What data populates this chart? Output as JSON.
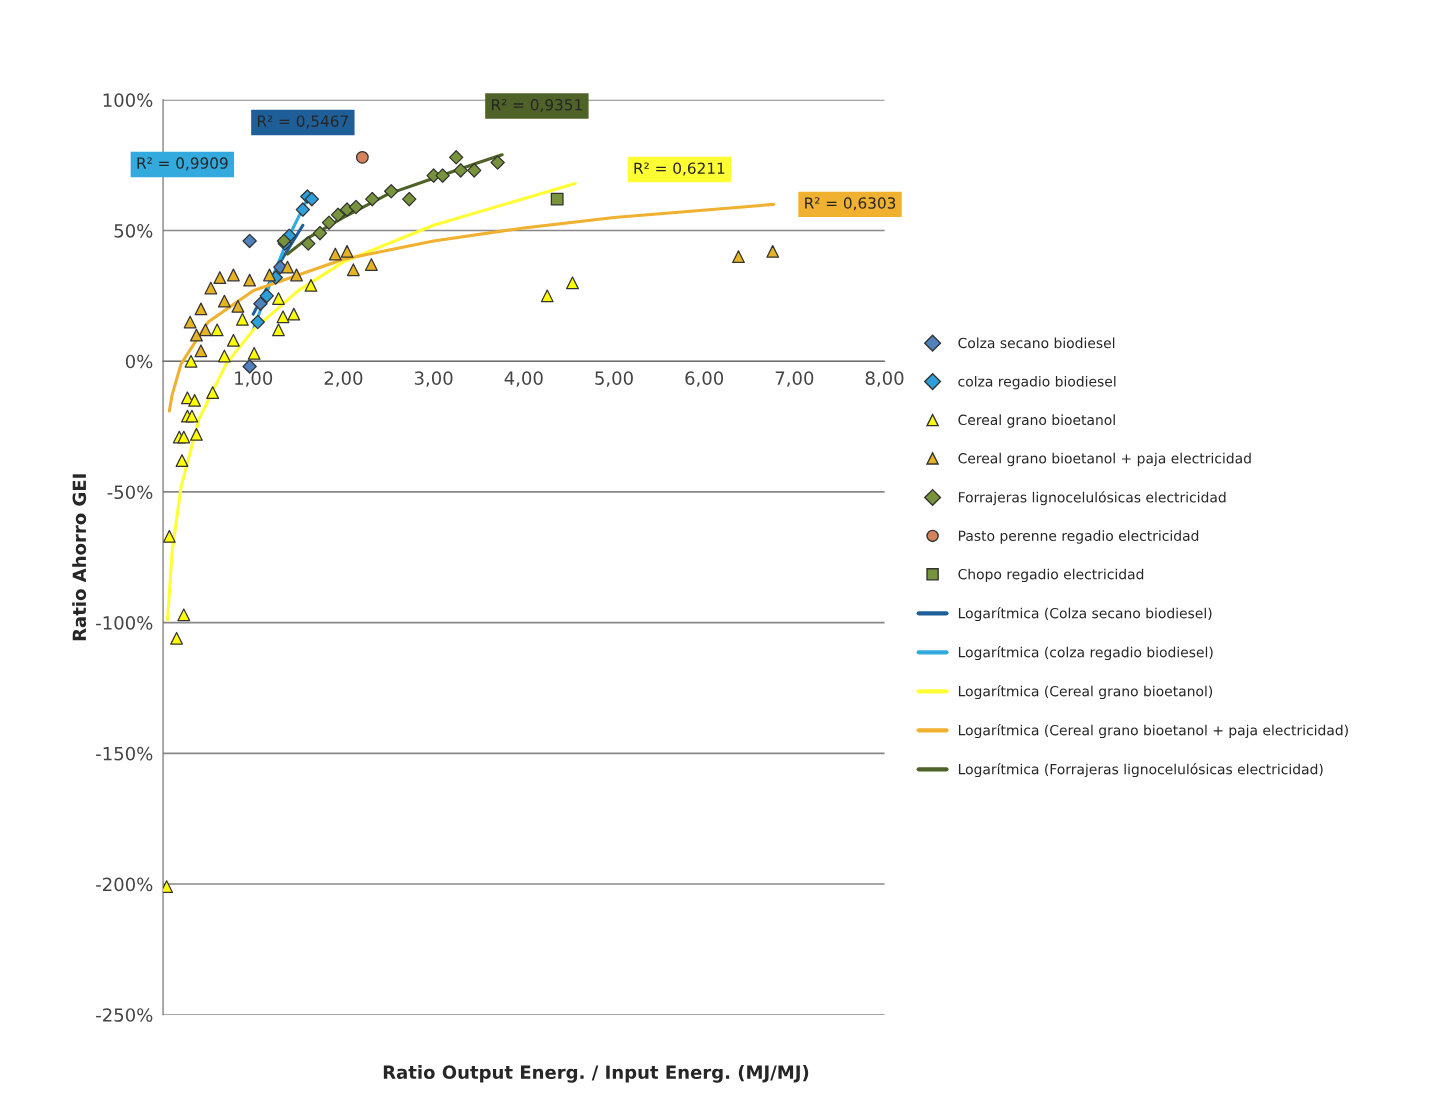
{
  "chart_data": {
    "type": "scatter",
    "xlabel": "Ratio Output Energ. / Input Energ. (MJ/MJ)",
    "ylabel": "Ratio Ahorro GEI",
    "xlim": [
      0,
      8
    ],
    "xticks": [
      {
        "value": 1,
        "label": "1,00"
      },
      {
        "value": 2,
        "label": "2,00"
      },
      {
        "value": 3,
        "label": "3,00"
      },
      {
        "value": 4,
        "label": "4,00"
      },
      {
        "value": 5,
        "label": "5,00"
      },
      {
        "value": 6,
        "label": "6,00"
      },
      {
        "value": 7,
        "label": "7,00"
      },
      {
        "value": 8,
        "label": "8,00"
      }
    ],
    "ylim": [
      -250,
      100
    ],
    "yticks": [
      {
        "value": -250,
        "label": "-250%"
      },
      {
        "value": -200,
        "label": "-200%"
      },
      {
        "value": -150,
        "label": "-150%"
      },
      {
        "value": -100,
        "label": "-100%"
      },
      {
        "value": -50,
        "label": "-50%"
      },
      {
        "value": 0,
        "label": "0%"
      },
      {
        "value": 50,
        "label": "50%"
      },
      {
        "value": 100,
        "label": "100%"
      }
    ],
    "grid": "y",
    "legend": "right",
    "series": [
      {
        "name": "Colza secano biodiesel",
        "color": "#4f81bd",
        "marker": "diamond",
        "x": [
          0.96,
          0.96,
          1.08,
          1.3
        ],
        "values": [
          46,
          -2,
          22,
          36
        ]
      },
      {
        "name": "colza regadio biodiesel",
        "color": "#2e9fd8",
        "marker": "diamond",
        "x": [
          1.05,
          1.15,
          1.25,
          1.35,
          1.4,
          1.55,
          1.6,
          1.65
        ],
        "values": [
          15,
          25,
          32,
          45,
          48,
          58,
          63,
          62
        ]
      },
      {
        "name": "Cereal grano bioetanol",
        "color": "#ffff00",
        "marker": "triangle",
        "x": [
          0.04,
          0.15,
          0.23,
          0.07,
          0.21,
          0.18,
          0.23,
          0.37,
          0.27,
          0.32,
          0.27,
          0.35,
          0.55,
          0.31,
          0.68,
          1.01,
          1.28,
          1.33,
          1.45,
          1.28,
          0.88,
          4.26,
          4.54,
          1.64,
          0.78,
          0.6
        ],
        "values": [
          -201,
          -106,
          -97,
          -67,
          -38,
          -29,
          -29,
          -28,
          -21,
          -21,
          -14,
          -15,
          -12,
          0,
          2,
          3,
          12,
          17,
          18,
          24,
          16,
          25,
          30,
          29,
          8,
          12
        ]
      },
      {
        "name": "Cereal grano bioetanol + paja electricidad",
        "color": "#e6b422",
        "marker": "triangle",
        "x": [
          0.3,
          0.42,
          0.53,
          0.63,
          0.78,
          0.96,
          0.47,
          0.37,
          1.18,
          1.38,
          1.48,
          1.91,
          2.04,
          2.11,
          2.31,
          6.38,
          6.76,
          0.68,
          0.83,
          0.42
        ],
        "values": [
          15,
          20,
          28,
          32,
          33,
          31,
          12,
          10,
          33,
          36,
          33,
          41,
          42,
          35,
          37,
          40,
          42,
          23,
          21,
          4
        ]
      },
      {
        "name": "Forrajeras lignocelulósicas electricidad",
        "color": "#77933c",
        "marker": "diamond",
        "x": [
          1.34,
          1.61,
          1.74,
          1.84,
          1.94,
          2.04,
          2.14,
          2.32,
          2.53,
          2.73,
          3.0,
          3.25,
          3.3,
          3.45,
          3.71,
          3.1
        ],
        "values": [
          46,
          45,
          49,
          53,
          56,
          58,
          59,
          62,
          65,
          62,
          71,
          78,
          73,
          73,
          76,
          71
        ]
      },
      {
        "name": "Pasto perenne regadio electricidad",
        "color": "#d4835a",
        "marker": "circle",
        "x": [
          2.21
        ],
        "values": [
          78
        ]
      },
      {
        "name": "Chopo regadio electricidad",
        "color": "#77933c",
        "marker": "square",
        "x": [
          4.37
        ],
        "values": [
          62
        ]
      },
      {
        "name": "Logarítmica (Colza secano biodiesel)",
        "type": "line",
        "color": "#1f5f99",
        "marker": "none",
        "x": [
          1.0,
          1.3,
          1.55
        ],
        "values": [
          18,
          38,
          52
        ]
      },
      {
        "name": "Logarítmica (colza regadio biodiesel)",
        "type": "line",
        "color": "#33aadd",
        "marker": "none",
        "x": [
          1.0,
          1.2,
          1.4,
          1.6
        ],
        "values": [
          12,
          31,
          48,
          62
        ]
      },
      {
        "name": "Logarítmica (Cereal grano bioetanol)",
        "type": "line",
        "color": "#ffff33",
        "marker": "none",
        "x": [
          0.05,
          0.1,
          0.2,
          0.4,
          0.7,
          1,
          1.5,
          2,
          3,
          4.57
        ],
        "values": [
          -99,
          -73,
          -48,
          -22,
          -1,
          12,
          27,
          38,
          52,
          68
        ]
      },
      {
        "name": "Logarítmica (Cereal grano bioetanol + paja electricidad)",
        "type": "line",
        "color": "#f0b030",
        "marker": "none",
        "x": [
          0.07,
          0.1,
          0.2,
          0.5,
          1,
          2,
          3,
          4,
          5,
          6.77
        ],
        "values": [
          -19,
          -13,
          -1,
          15,
          27,
          39,
          46,
          51,
          55,
          60
        ]
      },
      {
        "name": "Logarítmica (Forrajeras lignocelulósicas electricidad)",
        "type": "line",
        "color": "#4f6228",
        "marker": "none",
        "x": [
          1.38,
          1.6,
          2,
          2.5,
          3,
          3.5,
          3.76
        ],
        "values": [
          41,
          47,
          55,
          64,
          70,
          76,
          79
        ]
      }
    ],
    "annotations": [
      "R² = 0,5467",
      "R² = 0,9909",
      "R² = 0,6211",
      "R² = 0,6303",
      "R² = 0,9351"
    ]
  }
}
